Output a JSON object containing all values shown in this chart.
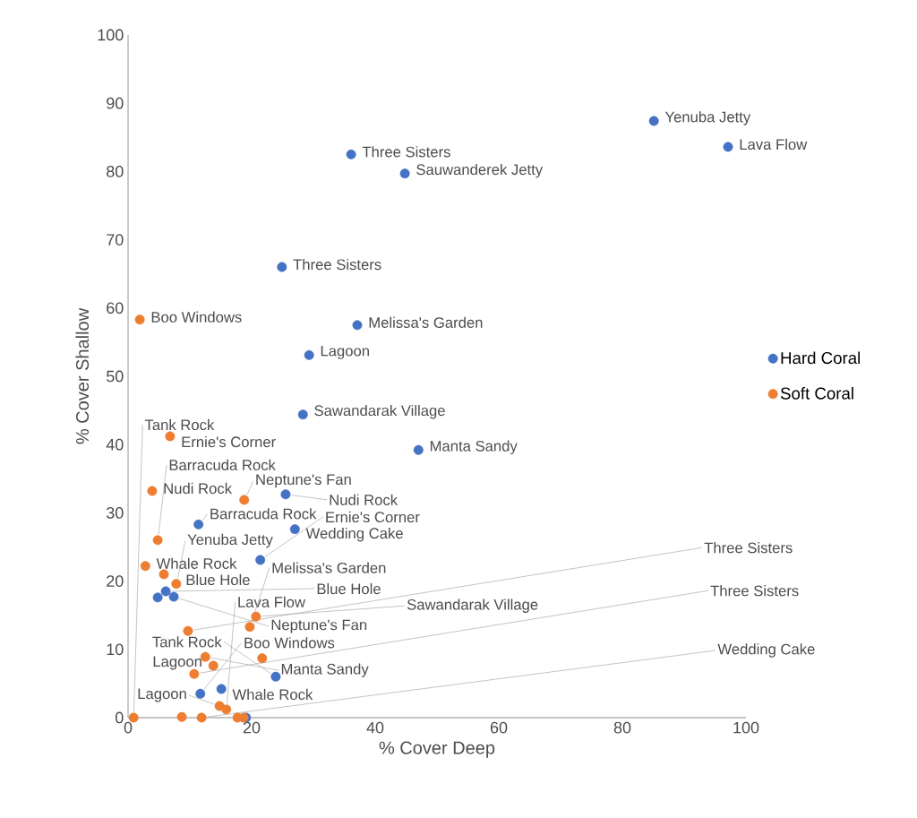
{
  "chart_data": {
    "type": "scatter",
    "xlabel": "% Cover Deep",
    "ylabel": "% Cover Shallow",
    "xlim": [
      0,
      100
    ],
    "xticks": [
      0,
      20,
      40,
      60,
      80,
      100
    ],
    "ylim": [
      0,
      100
    ],
    "yticks": [
      0,
      10,
      20,
      30,
      40,
      50,
      60,
      70,
      80,
      90,
      100
    ],
    "grid": false,
    "legend": "right",
    "marker": "circle",
    "series": [
      {
        "name": "Hard Coral",
        "color": "#4472c4",
        "x": [
          85.1,
          97.1,
          36.1,
          44.8,
          24.9,
          37.1,
          29.3,
          28.3,
          47.0,
          25.5,
          11.4,
          27.0,
          21.4,
          6.1,
          7.4,
          4.8,
          23.9,
          15.1,
          11.7,
          19.1
        ],
        "values": [
          87.4,
          83.6,
          82.5,
          79.7,
          66.0,
          57.5,
          53.1,
          44.4,
          39.2,
          32.7,
          28.3,
          27.6,
          23.1,
          18.5,
          17.7,
          17.6,
          6.0,
          4.2,
          3.5,
          0
        ],
        "value_labels": [
          "Yenuba Jetty",
          "Lava Flow",
          "Three Sisters",
          "Sauwanderek Jetty",
          "Three Sisters",
          "Melissa's Garden",
          "Lagoon",
          "Sawandarak Village",
          "Manta Sandy",
          "Nudi Rock",
          "Barracuda Rock",
          "Wedding Cake",
          "Ernie's Corner",
          "Blue Hole",
          "Neptune's Fan",
          null,
          "Tank Rock",
          "Whale Rock",
          "Boo Windows",
          null
        ]
      },
      {
        "name": "Soft Coral",
        "color": "#ed7d31",
        "x": [
          1.9,
          6.8,
          3.9,
          18.8,
          4.8,
          2.8,
          5.8,
          7.8,
          20.7,
          19.7,
          9.7,
          12.5,
          13.8,
          10.7,
          21.7,
          0.9,
          8.7,
          11.9,
          14.8,
          15.9,
          17.7,
          18.7
        ],
        "values": [
          58.3,
          41.2,
          33.2,
          31.9,
          26.0,
          22.2,
          21.0,
          19.6,
          14.8,
          13.3,
          12.7,
          8.9,
          7.6,
          6.4,
          8.7,
          0,
          0.1,
          0,
          1.7,
          1.2,
          0,
          0
        ],
        "value_labels": [
          "Boo Windows",
          "Ernie's Corner",
          "Nudi Rock",
          "Neptune's Fan",
          "Barracuda Rock",
          "Whale Rock",
          "Blue Hole",
          "Yenuba Jetty",
          "Sawandarak Village",
          "Melissa's Garden",
          "Three Sisters",
          "Manta Sandy",
          "Lagoon",
          "Three Sisters",
          null,
          "Tank Rock",
          null,
          "Wedding Cake",
          "Lagoon",
          "Lava Flow",
          null,
          null
        ]
      }
    ]
  }
}
